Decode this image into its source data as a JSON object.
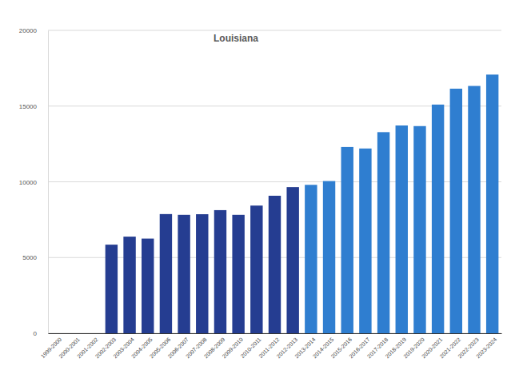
{
  "chart_data": {
    "type": "bar",
    "title": "Louisiana",
    "categories": [
      "1999-2000",
      "2000-2001",
      "2001-2002",
      "2002-2003",
      "2003-2004",
      "2004-2005",
      "2005-2006",
      "2006-2007",
      "2007-2008",
      "2008-2009",
      "2009-2010",
      "2010-2011",
      "2011-2012",
      "2012-2013",
      "2013-2014",
      "2014-2015",
      "2015-2016",
      "2016-2017",
      "2017-2018",
      "2018-2019",
      "2019-2020",
      "2020-2021",
      "2021-2022",
      "2022-2023",
      "2023-2024"
    ],
    "values": [
      null,
      null,
      null,
      5850,
      6380,
      6250,
      7870,
      7820,
      7860,
      8130,
      7820,
      8430,
      9080,
      9650,
      9800,
      10050,
      12300,
      12200,
      13280,
      13720,
      13680,
      15100,
      16150,
      16330,
      17080
    ],
    "colors": [
      null,
      null,
      null,
      "#253d91",
      "#253d91",
      "#253d91",
      "#253d91",
      "#253d91",
      "#253d91",
      "#253d91",
      "#253d91",
      "#253d91",
      "#253d91",
      "#253d91",
      "#2f7ed0",
      "#2f7ed0",
      "#2f7ed0",
      "#2f7ed0",
      "#2f7ed0",
      "#2f7ed0",
      "#2f7ed0",
      "#2f7ed0",
      "#2f7ed0",
      "#2f7ed0",
      "#2f7ed0"
    ],
    "ylim": [
      0,
      20000
    ],
    "yticks": [
      0,
      5000,
      10000,
      15000,
      20000
    ],
    "grid": true
  }
}
